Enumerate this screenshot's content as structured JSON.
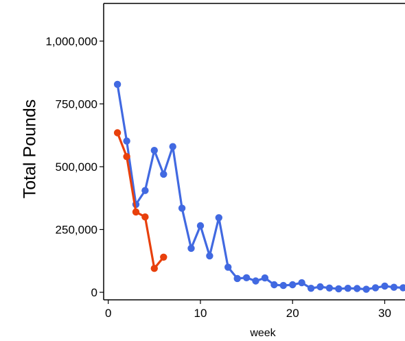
{
  "chart_data": {
    "type": "line",
    "xlabel": "week",
    "ylabel": "Total Pounds",
    "xlim": [
      -0.5,
      32.2
    ],
    "ylim": [
      -30000,
      1150000
    ],
    "x_ticks": [
      {
        "value": 0,
        "label": "0"
      },
      {
        "value": 10,
        "label": "10"
      },
      {
        "value": 20,
        "label": "20"
      },
      {
        "value": 30,
        "label": "30"
      }
    ],
    "y_ticks": [
      {
        "value": 0,
        "label": "0"
      },
      {
        "value": 250000,
        "label": "250,000"
      },
      {
        "value": 500000,
        "label": "500,000"
      },
      {
        "value": 750000,
        "label": "750,000"
      },
      {
        "value": 1000000,
        "label": "1,000,000"
      }
    ],
    "grid": false,
    "legend": "none",
    "series": [
      {
        "color": "#4169e1",
        "x": [
          1,
          2,
          3,
          4,
          5,
          6,
          7,
          8,
          9,
          10,
          11,
          12,
          13,
          14,
          15,
          16,
          17,
          18,
          19,
          20,
          21,
          22,
          23,
          24,
          25,
          26,
          27,
          28,
          29,
          30,
          31,
          32
        ],
        "y": [
          828000,
          602000,
          350000,
          405000,
          565000,
          470000,
          580000,
          335000,
          175000,
          265000,
          145000,
          297000,
          100000,
          55000,
          58000,
          45000,
          57000,
          30000,
          27000,
          30000,
          38000,
          16000,
          22000,
          17000,
          14000,
          16000,
          15000,
          12000,
          18000,
          25000,
          20000,
          18000
        ]
      },
      {
        "color": "#e8400c",
        "x": [
          1,
          2,
          3,
          4,
          5,
          6
        ],
        "y": [
          635000,
          540000,
          320000,
          300000,
          95000,
          140000
        ]
      }
    ]
  }
}
